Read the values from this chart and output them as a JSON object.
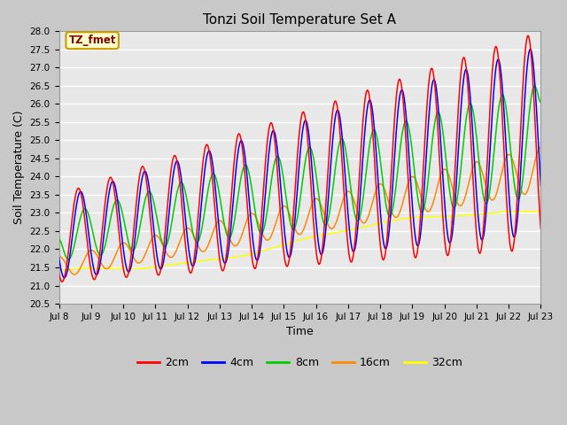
{
  "title": "Tonzi Soil Temperature Set A",
  "xlabel": "Time",
  "ylabel": "Soil Temperature (C)",
  "ylim": [
    20.5,
    28.0
  ],
  "xtick_labels": [
    "Jul 8",
    "Jul 9",
    "Jul 10",
    "Jul 11",
    "Jul 12",
    "Jul 13",
    "Jul 14",
    "Jul 15",
    "Jul 16",
    "Jul 17",
    "Jul 18",
    "Jul 19",
    "Jul 20",
    "Jul 21",
    "Jul 22",
    "Jul 23"
  ],
  "line_colors": {
    "2cm": "#ff0000",
    "4cm": "#0000ff",
    "8cm": "#00cc00",
    "16cm": "#ff8800",
    "32cm": "#ffff00"
  },
  "annotation_text": "TZ_fmet",
  "annotation_color": "#8b0000",
  "annotation_bg": "#ffffcc",
  "fig_bg": "#c8c8c8",
  "plot_bg": "#e8e8e8",
  "grid_color": "#ffffff"
}
